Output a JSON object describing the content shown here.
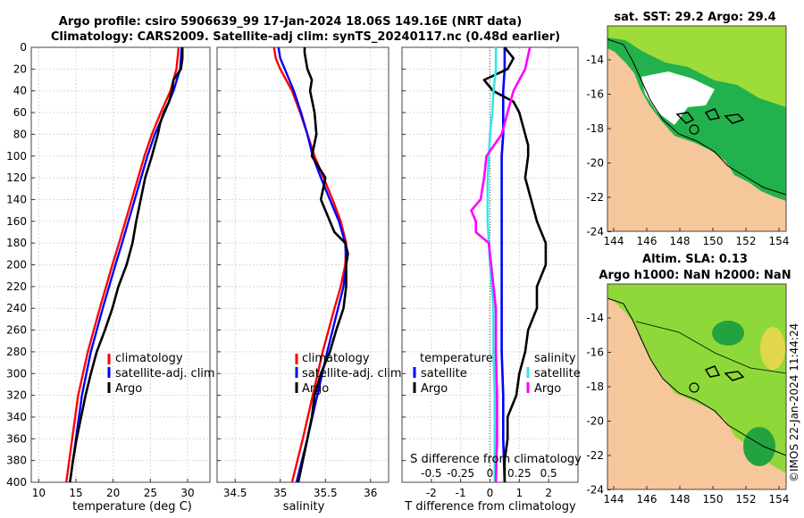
{
  "title": {
    "line1": "Argo profile: csiro 5906639_99 17-Jan-2024 18.06S 149.16E (NRT data)",
    "line2": "Climatology: CARS2009. Satellite-adj clim: synTS_20240117.nc (0.48d earlier)"
  },
  "watermark": "©IMOS 22-Jan-2024 11:44:24",
  "colors": {
    "climatology": "#ff0000",
    "satellite": "#0000ff",
    "argo": "#000000",
    "sat_diff_s": "#33e6e6",
    "argo_diff_s": "#ff00ff",
    "land": "#f6c79b"
  },
  "chart_data": [
    {
      "type": "line",
      "name": "temperature-profile",
      "xlabel": "temperature (deg C)",
      "xlim": [
        9,
        33
      ],
      "xticks": [
        "10",
        "15",
        "20",
        "25",
        "30"
      ],
      "ylim": [
        0,
        400
      ],
      "yticks": [
        "0",
        "20",
        "40",
        "60",
        "80",
        "100",
        "120",
        "140",
        "160",
        "180",
        "200",
        "220",
        "240",
        "260",
        "280",
        "300",
        "320",
        "340",
        "360",
        "380",
        "400"
      ],
      "legend": [
        "climatology",
        "satellite-adj. clim",
        "Argo"
      ],
      "series": [
        {
          "name": "climatology",
          "depth": [
            0,
            20,
            40,
            60,
            80,
            100,
            140,
            180,
            200,
            240,
            280,
            320,
            360,
            400
          ],
          "values": [
            28.8,
            28.5,
            27.7,
            26.4,
            25.2,
            24.2,
            22.5,
            20.8,
            19.9,
            18.2,
            16.6,
            15.3,
            14.5,
            13.7
          ]
        },
        {
          "name": "satellite-adj. clim",
          "depth": [
            0,
            20,
            40,
            60,
            80,
            100,
            140,
            180,
            200,
            240,
            280,
            320,
            360,
            400
          ],
          "values": [
            29.2,
            29.0,
            28.1,
            26.9,
            25.6,
            24.6,
            22.9,
            21.2,
            20.3,
            18.6,
            17.0,
            15.8,
            15.0,
            14.2
          ]
        },
        {
          "name": "Argo",
          "depth": [
            0,
            10,
            20,
            30,
            40,
            50,
            60,
            70,
            80,
            90,
            100,
            120,
            140,
            160,
            180,
            200,
            220,
            240,
            260,
            280,
            300,
            320,
            340,
            360,
            380,
            400
          ],
          "values": [
            29.3,
            29.3,
            29.1,
            28.1,
            27.9,
            27.5,
            26.8,
            26.3,
            26.0,
            25.6,
            25.2,
            24.3,
            23.7,
            23.1,
            22.6,
            21.8,
            20.7,
            19.9,
            18.9,
            17.8,
            17.0,
            16.3,
            15.7,
            15.1,
            14.6,
            14.2
          ]
        }
      ]
    },
    {
      "type": "line",
      "name": "salinity-profile",
      "xlabel": "salinity",
      "xlim": [
        34.3,
        36.2
      ],
      "xticks": [
        "34.5",
        "35",
        "35.5",
        "36"
      ],
      "ylim": [
        0,
        400
      ],
      "legend": [
        "climatology",
        "satellite-adj. clim",
        "Argo"
      ],
      "series": [
        {
          "name": "climatology",
          "depth": [
            0,
            10,
            20,
            40,
            60,
            80,
            100,
            120,
            140,
            160,
            180,
            200,
            220,
            240,
            280,
            320,
            360,
            400
          ],
          "values": [
            34.93,
            34.95,
            35.0,
            35.13,
            35.22,
            35.3,
            35.38,
            35.48,
            35.58,
            35.67,
            35.73,
            35.72,
            35.67,
            35.6,
            35.47,
            35.36,
            35.25,
            35.13
          ]
        },
        {
          "name": "satellite-adj. clim",
          "depth": [
            0,
            10,
            20,
            40,
            60,
            80,
            100,
            120,
            140,
            160,
            180,
            200,
            220,
            240,
            280,
            320,
            360,
            400
          ],
          "values": [
            34.98,
            35.0,
            35.05,
            35.15,
            35.23,
            35.3,
            35.36,
            35.45,
            35.55,
            35.65,
            35.72,
            35.73,
            35.7,
            35.64,
            35.52,
            35.41,
            35.3,
            35.18
          ]
        },
        {
          "name": "Argo",
          "depth": [
            0,
            5,
            10,
            20,
            30,
            40,
            60,
            80,
            100,
            120,
            140,
            160,
            170,
            180,
            190,
            200,
            220,
            240,
            260,
            280,
            300,
            320,
            340,
            360,
            380,
            400
          ],
          "values": [
            35.27,
            35.27,
            35.28,
            35.3,
            35.35,
            35.33,
            35.38,
            35.4,
            35.35,
            35.5,
            35.45,
            35.55,
            35.6,
            35.72,
            35.75,
            35.73,
            35.73,
            35.7,
            35.62,
            35.55,
            35.45,
            35.38,
            35.35,
            35.3,
            35.25,
            35.2
          ]
        }
      ]
    },
    {
      "type": "line",
      "name": "difference-profile",
      "xlabel": "T difference from climatology",
      "xlabel_top": "S difference from climatology",
      "xlim": [
        -3,
        3
      ],
      "xticks": [
        "-2",
        "-1",
        "0",
        "1",
        "2"
      ],
      "s_ticks": [
        "-0.5",
        "-0.25",
        "0",
        "0.25",
        "0.5"
      ],
      "ylim": [
        0,
        400
      ],
      "legend_temperature": {
        "title": "temperature",
        "items": [
          "satellite",
          "Argo"
        ]
      },
      "legend_salinity": {
        "title": "salinity",
        "items": [
          "satellite",
          "Argo"
        ]
      },
      "series": [
        {
          "name": "T satellite",
          "depth": [
            0,
            20,
            40,
            60,
            80,
            100,
            140,
            180,
            200,
            240,
            280,
            320,
            360,
            400
          ],
          "values": [
            0.5,
            0.5,
            0.45,
            0.45,
            0.45,
            0.4,
            0.4,
            0.4,
            0.4,
            0.4,
            0.4,
            0.45,
            0.45,
            0.5
          ]
        },
        {
          "name": "T Argo",
          "depth": [
            0,
            10,
            20,
            30,
            40,
            50,
            60,
            70,
            80,
            90,
            100,
            120,
            140,
            160,
            180,
            200,
            220,
            240,
            260,
            280,
            300,
            320,
            340,
            360,
            380,
            400
          ],
          "values": [
            0.5,
            0.8,
            0.6,
            -0.2,
            0.1,
            0.8,
            1.0,
            1.1,
            1.2,
            1.3,
            1.3,
            1.2,
            1.4,
            1.6,
            1.9,
            1.9,
            1.6,
            1.6,
            1.3,
            1.2,
            1.0,
            0.9,
            0.6,
            0.6,
            0.5,
            0.5
          ]
        },
        {
          "name": "S satellite",
          "depth": [
            0,
            10,
            20,
            40,
            60,
            80,
            100,
            120,
            140,
            160,
            180,
            200,
            240,
            280,
            320,
            360,
            400
          ],
          "values": [
            0.05,
            0.05,
            0.05,
            0.03,
            0.02,
            0.0,
            -0.01,
            -0.02,
            -0.02,
            -0.02,
            -0.01,
            0.0,
            0.03,
            0.03,
            0.04,
            0.04,
            0.04
          ]
        },
        {
          "name": "S Argo",
          "depth": [
            0,
            10,
            20,
            40,
            60,
            80,
            100,
            120,
            140,
            150,
            160,
            170,
            180,
            200,
            240,
            280,
            320,
            360,
            400
          ],
          "values": [
            0.34,
            0.32,
            0.3,
            0.2,
            0.15,
            0.1,
            -0.03,
            -0.05,
            -0.08,
            -0.16,
            -0.12,
            -0.12,
            -0.01,
            0.01,
            0.05,
            0.05,
            0.06,
            0.06,
            0.05
          ]
        }
      ]
    }
  ],
  "maps": [
    {
      "name": "sst-map",
      "title": "sat. SST: 29.2 Argo: 29.4",
      "lon_ticks": [
        "144",
        "146",
        "148",
        "150",
        "152",
        "154"
      ],
      "lat_ticks": [
        "-14",
        "-16",
        "-18",
        "-20",
        "-22",
        "-24"
      ]
    },
    {
      "name": "sla-map",
      "title_line1": "Altim. SLA: 0.13",
      "title_line2": "Argo h1000: NaN h2000: NaN",
      "lon_ticks": [
        "144",
        "146",
        "148",
        "150",
        "152",
        "154"
      ],
      "lat_ticks": [
        "-14",
        "-16",
        "-18",
        "-20",
        "-22",
        "-24"
      ]
    }
  ],
  "argo_position": {
    "lon": 149.16,
    "lat": -18.06
  }
}
